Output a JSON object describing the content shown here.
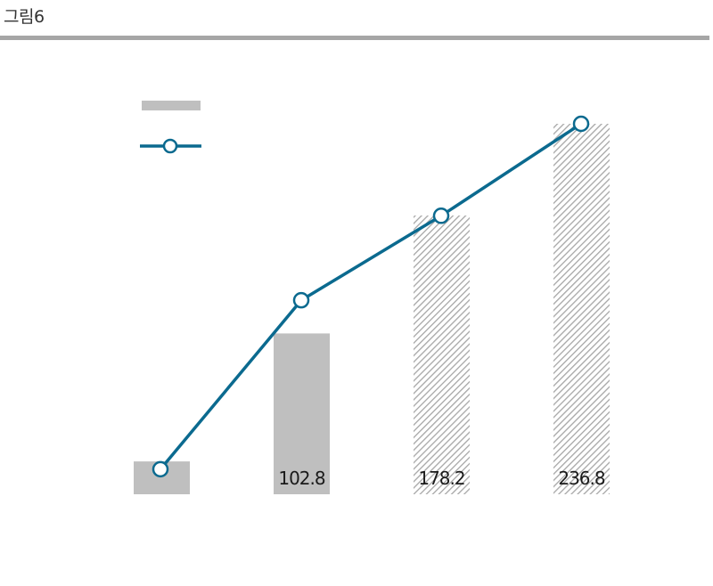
{
  "figure": {
    "label": "그림6"
  },
  "colors": {
    "bar_solid": "#bfbfbf",
    "bar_hatch": "#a6a6a6",
    "line": "#0b6a8f",
    "marker_fill": "#ffffff",
    "rule": "#a6a6a6"
  },
  "chart_data": {
    "type": "bar",
    "title": "",
    "xlabel": "",
    "ylabel": "",
    "categories": [
      "",
      "",
      "",
      ""
    ],
    "series": [
      {
        "kind": "bar",
        "values": [
          21,
          102.8,
          178.2,
          236.8
        ],
        "data_labels": [
          "",
          "102.8",
          "178.2",
          "236.8"
        ],
        "styles": [
          "solid",
          "solid",
          "hatched",
          "hatched"
        ]
      },
      {
        "kind": "line",
        "values": [
          16,
          124,
          178,
          236.8
        ],
        "marker": "open-circle"
      }
    ],
    "ylim": [
      0,
      236.8
    ],
    "grid": false,
    "legend": {
      "placement": "top-left",
      "entries": [
        "",
        ""
      ]
    }
  }
}
